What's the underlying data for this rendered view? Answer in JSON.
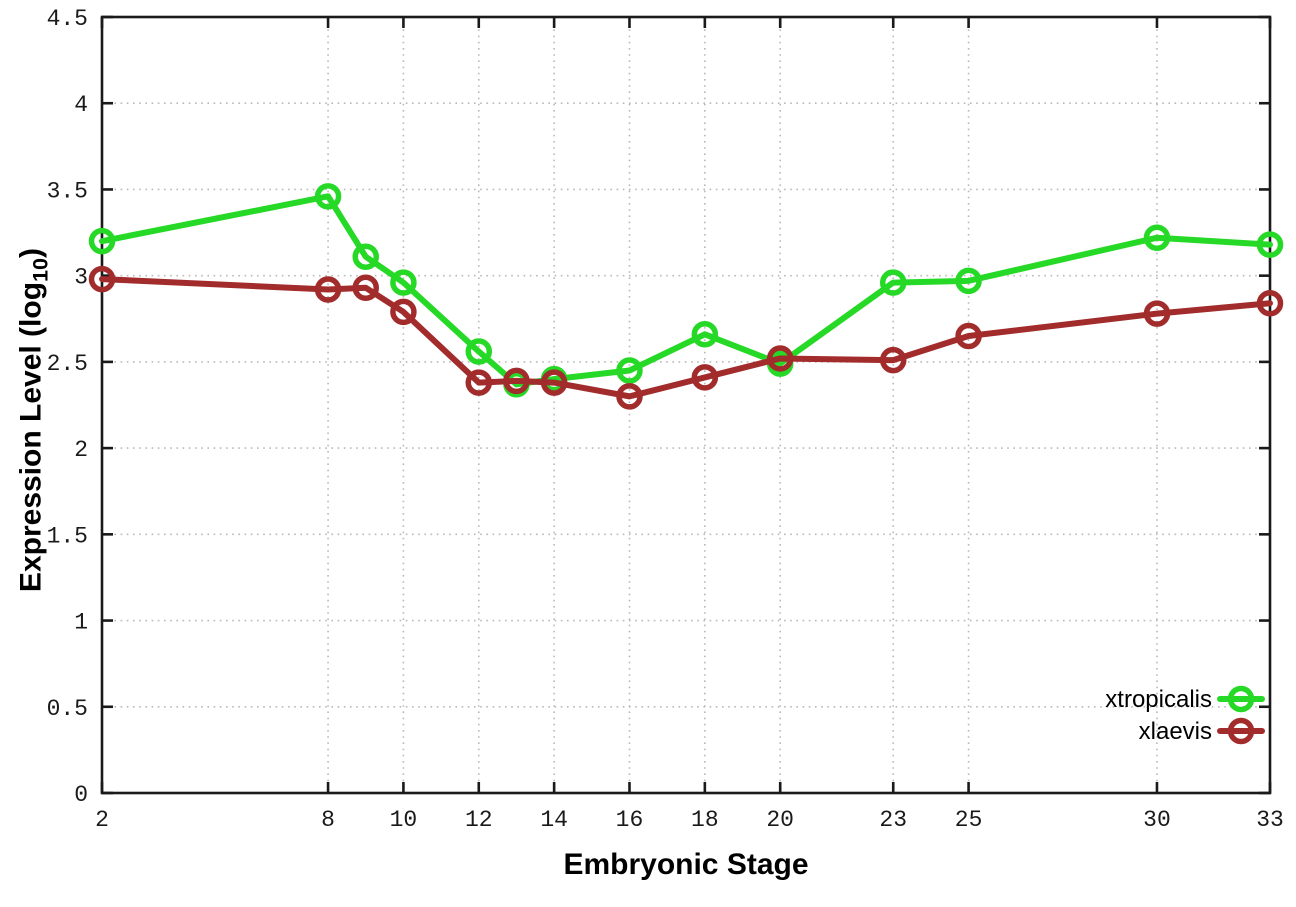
{
  "chart_data": {
    "type": "line",
    "title": "",
    "xlabel": "Embryonic Stage",
    "ylabel": {
      "main": "Expression Level (log",
      "sub": "10",
      "end": ")"
    },
    "x": [
      2,
      8,
      9,
      10,
      12,
      13,
      14,
      16,
      18,
      20,
      23,
      25,
      30,
      33
    ],
    "series": [
      {
        "name": "xtropicalis",
        "color": "#26d926",
        "values": [
          3.2,
          3.46,
          3.11,
          2.96,
          2.56,
          2.37,
          2.4,
          2.45,
          2.66,
          2.49,
          2.96,
          2.97,
          3.22,
          3.18
        ]
      },
      {
        "name": "xlaevis",
        "color": "#a22c2c",
        "values": [
          2.98,
          2.92,
          2.93,
          2.79,
          2.38,
          2.39,
          2.38,
          2.3,
          2.41,
          2.52,
          2.51,
          2.65,
          2.78,
          2.84
        ]
      }
    ],
    "xlim": [
      2,
      33
    ],
    "ylim": [
      0,
      4.5
    ],
    "x_ticks": {
      "values": [
        2,
        8,
        10,
        12,
        14,
        16,
        18,
        20,
        23,
        25,
        30,
        33
      ],
      "labels": [
        "2",
        "8",
        "10",
        "12",
        "14",
        "16",
        "18",
        "20",
        "23",
        "25",
        "30",
        "33"
      ]
    },
    "y_ticks": {
      "values": [
        0,
        0.5,
        1,
        1.5,
        2,
        2.5,
        3,
        3.5,
        4,
        4.5
      ],
      "labels": [
        "0",
        "0.5",
        "1",
        "1.5",
        "2",
        "2.5",
        "3",
        "3.5",
        "4",
        "4.5"
      ]
    },
    "grid": true,
    "legend_position": "bottom-right",
    "marker": "open-circle"
  },
  "styles": {
    "background": "#ffffff",
    "border_color": "#1a1a1a",
    "grid_color": "#b9b9b9",
    "text_color": "#1a1a1a",
    "series_green": "#26d926",
    "series_red": "#a22c2c"
  }
}
